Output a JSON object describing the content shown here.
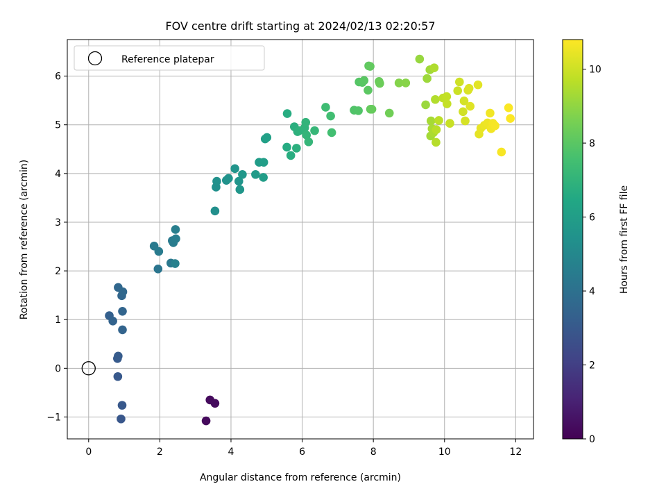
{
  "chart_data": {
    "type": "scatter",
    "title": "FOV centre drift starting at 2024/02/13 02:20:57",
    "xlabel": "Angular distance from reference (arcmin)",
    "ylabel": "Rotation from reference (arcmin)",
    "xlim": [
      -0.6,
      12.5
    ],
    "ylim": [
      -1.45,
      6.75
    ],
    "xticks": [
      0,
      2,
      4,
      6,
      8,
      10,
      12
    ],
    "yticks": [
      -1,
      0,
      1,
      2,
      3,
      4,
      5,
      6
    ],
    "grid": true,
    "legend": {
      "placement": "upper left",
      "entries": [
        "Reference platepar"
      ]
    },
    "reference_point": {
      "x": 0,
      "y": 0,
      "label": "Reference platepar"
    },
    "colorbar": {
      "label": "Hours from first FF file",
      "colormap": "viridis",
      "range": [
        0,
        10.8
      ],
      "ticks": [
        0,
        2,
        4,
        6,
        8,
        10
      ]
    },
    "x": [
      3.3,
      3.41,
      3.55,
      0.91,
      0.94,
      0.82,
      0.81,
      0.83,
      0.58,
      0.68,
      0.95,
      0.95,
      0.93,
      0.83,
      0.96,
      1.95,
      2.31,
      2.35,
      1.84,
      1.97,
      2.38,
      2.45,
      2.44,
      2.43,
      3.55,
      3.58,
      3.6,
      3.87,
      3.93,
      4.11,
      4.22,
      4.25,
      4.32,
      4.69,
      4.79,
      4.91,
      4.92,
      4.96,
      5.01,
      5.57,
      5.58,
      5.68,
      5.78,
      5.84,
      5.87,
      5.92,
      6.07,
      6.1,
      6.12,
      6.18,
      6.35,
      6.66,
      6.8,
      6.83,
      7.46,
      7.58,
      7.6,
      7.69,
      7.74,
      7.85,
      7.87,
      7.91,
      7.92,
      7.96,
      8.16,
      8.18,
      8.45,
      8.72,
      8.91,
      9.3,
      9.47,
      9.51,
      9.59,
      9.61,
      9.62,
      9.65,
      9.69,
      9.71,
      9.74,
      9.76,
      9.77,
      9.84,
      9.96,
      10.06,
      10.07,
      10.15,
      10.37,
      10.42,
      10.52,
      10.55,
      10.58,
      10.66,
      10.69,
      10.72,
      10.94,
      10.97,
      11.02,
      11.12,
      11.21,
      11.28,
      11.31,
      11.36,
      11.42,
      11.6,
      11.8,
      11.85
    ],
    "y": [
      -1.08,
      -0.65,
      -0.72,
      -1.04,
      -0.76,
      -0.17,
      0.2,
      0.25,
      1.08,
      0.97,
      0.79,
      1.17,
      1.49,
      1.66,
      1.57,
      2.04,
      2.16,
      2.62,
      2.51,
      2.4,
      2.58,
      2.66,
      2.85,
      2.15,
      3.23,
      3.72,
      3.84,
      3.86,
      3.9,
      4.1,
      3.84,
      3.67,
      3.98,
      3.98,
      4.23,
      3.92,
      4.23,
      4.71,
      4.74,
      4.54,
      5.23,
      4.37,
      4.96,
      4.52,
      4.86,
      4.88,
      4.94,
      5.05,
      4.79,
      4.65,
      4.88,
      5.36,
      5.18,
      4.84,
      5.3,
      5.29,
      5.88,
      5.87,
      5.91,
      5.71,
      6.21,
      6.2,
      5.32,
      5.32,
      5.89,
      5.85,
      5.24,
      5.86,
      5.86,
      6.35,
      5.41,
      5.95,
      6.13,
      4.77,
      5.08,
      4.92,
      4.84,
      6.17,
      5.52,
      4.64,
      4.9,
      5.09,
      5.55,
      5.58,
      5.43,
      5.03,
      5.7,
      5.88,
      5.27,
      5.49,
      5.08,
      5.71,
      5.75,
      5.38,
      5.82,
      4.81,
      4.93,
      4.99,
      5.04,
      5.24,
      4.92,
      5.03,
      4.98,
      4.44,
      5.35,
      5.13
    ],
    "hours": [
      0.25,
      0.28,
      0.3,
      2.9,
      2.95,
      3.0,
      3.05,
      3.1,
      3.3,
      3.4,
      3.45,
      3.5,
      3.55,
      3.6,
      3.65,
      4.2,
      4.3,
      4.35,
      4.4,
      4.45,
      4.5,
      4.55,
      4.6,
      4.65,
      5.3,
      5.35,
      5.4,
      5.45,
      5.5,
      5.55,
      5.6,
      5.65,
      5.7,
      5.85,
      5.9,
      5.95,
      6.0,
      6.05,
      6.1,
      6.6,
      6.65,
      6.7,
      6.75,
      6.8,
      6.85,
      6.9,
      6.95,
      7.0,
      7.05,
      7.1,
      7.15,
      7.4,
      7.45,
      7.5,
      7.8,
      7.85,
      7.9,
      7.95,
      8.0,
      8.05,
      8.1,
      8.15,
      8.2,
      8.25,
      8.3,
      8.35,
      8.45,
      8.8,
      8.85,
      9.1,
      9.15,
      9.2,
      9.25,
      9.3,
      9.35,
      9.4,
      9.45,
      9.5,
      9.55,
      9.6,
      9.65,
      9.7,
      9.75,
      9.8,
      9.85,
      9.9,
      9.95,
      10.0,
      10.05,
      10.1,
      10.15,
      10.2,
      10.25,
      10.3,
      10.35,
      10.4,
      10.45,
      10.5,
      10.55,
      10.6,
      10.62,
      10.65,
      10.68,
      10.7,
      10.75,
      10.78
    ]
  }
}
